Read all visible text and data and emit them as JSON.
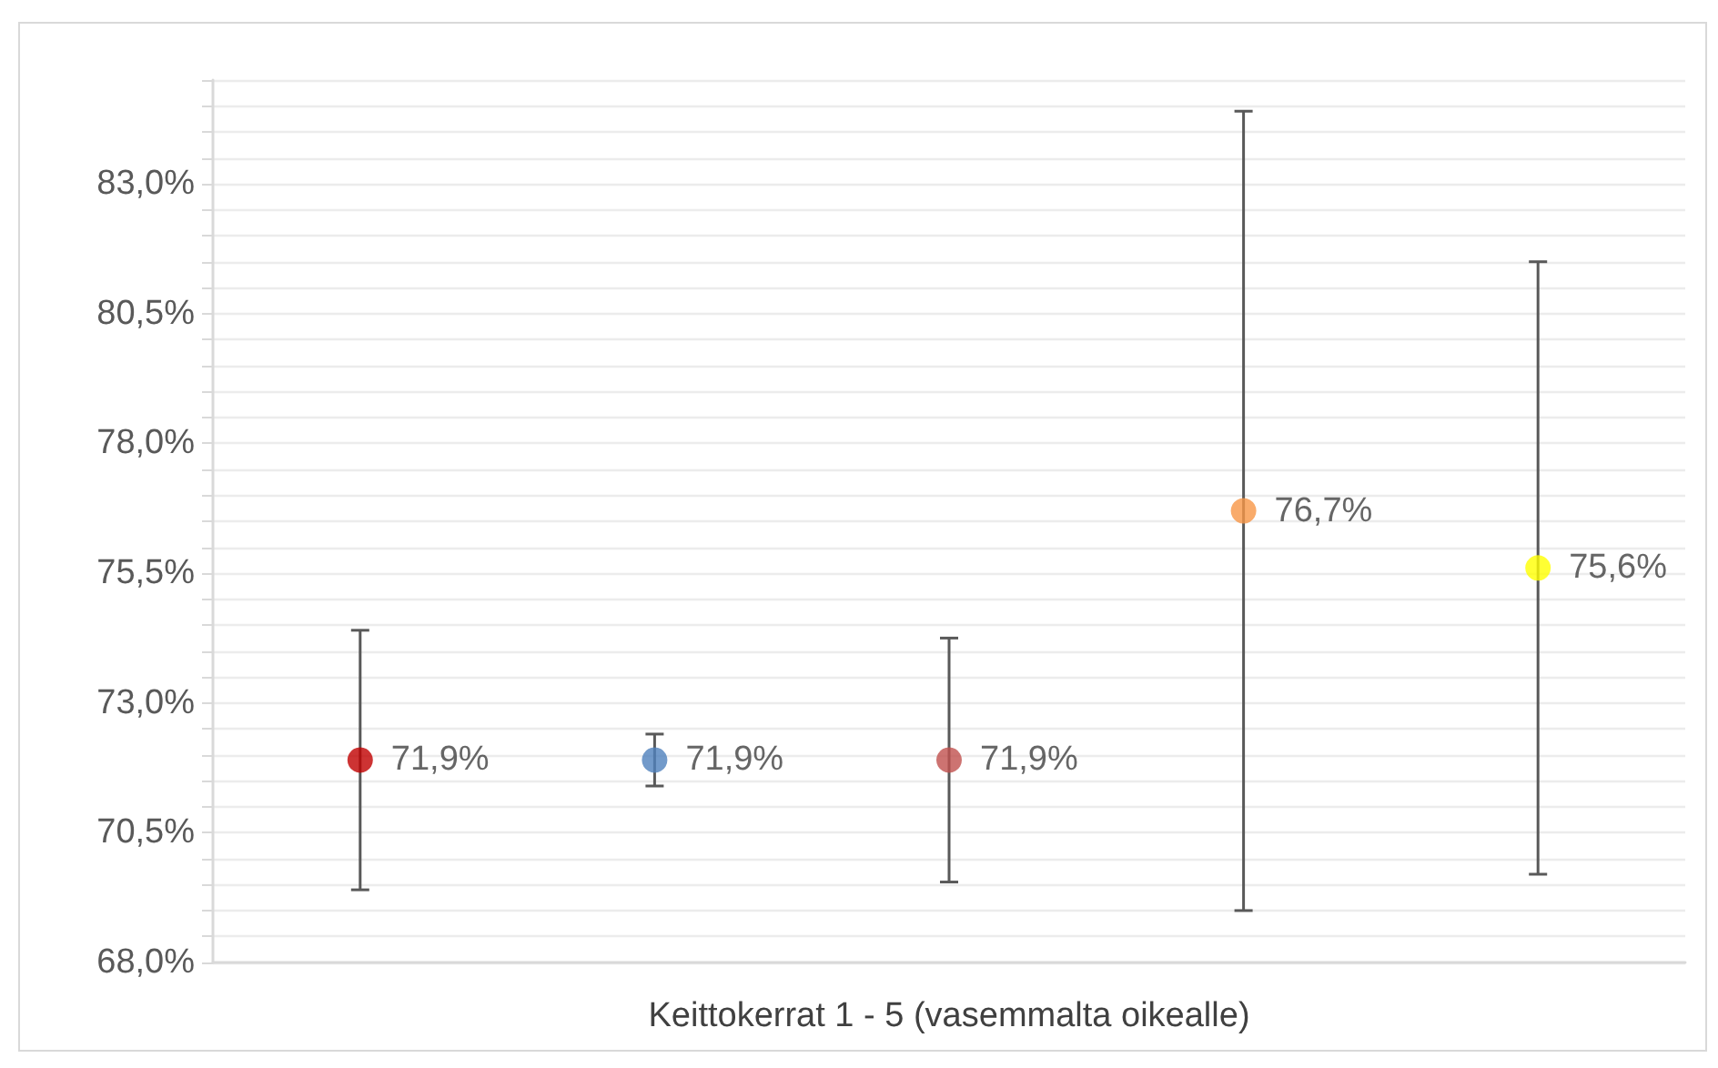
{
  "chart_data": {
    "type": "scatter",
    "xlabel": "Keittokerrat 1 - 5 (vasemmalta oikealle)",
    "categories": [
      null,
      null,
      null,
      null,
      null
    ],
    "series": [
      {
        "values": [
          71.9,
          71.9,
          71.9,
          76.7,
          75.6
        ],
        "colors": [
          "#c00000",
          "#4f81bd",
          "#c0504d",
          "#f79646",
          "#ffff00"
        ],
        "errors": [
          2.5,
          0.5,
          2.35,
          7.7,
          5.9
        ],
        "value_labels": [
          "71,9%",
          "71,9%",
          "71,9%",
          "76,7%",
          "75,6%"
        ]
      }
    ],
    "ylim": [
      68,
      85
    ],
    "yticks": [
      {
        "value": 68,
        "label": "68,0%"
      },
      {
        "value": 68.5,
        "label": null
      },
      {
        "value": 69,
        "label": null
      },
      {
        "value": 69.5,
        "label": null
      },
      {
        "value": 70,
        "label": null
      },
      {
        "value": 70.5,
        "label": "70,5%"
      },
      {
        "value": 71,
        "label": null
      },
      {
        "value": 71.5,
        "label": null
      },
      {
        "value": 72,
        "label": null
      },
      {
        "value": 72.5,
        "label": null
      },
      {
        "value": 73,
        "label": "73,0%"
      },
      {
        "value": 73.5,
        "label": null
      },
      {
        "value": 74,
        "label": null
      },
      {
        "value": 74.5,
        "label": null
      },
      {
        "value": 75,
        "label": null
      },
      {
        "value": 75.5,
        "label": "75,5%"
      },
      {
        "value": 76,
        "label": null
      },
      {
        "value": 76.5,
        "label": null
      },
      {
        "value": 77,
        "label": null
      },
      {
        "value": 77.5,
        "label": null
      },
      {
        "value": 78,
        "label": "78,0%"
      },
      {
        "value": 78.5,
        "label": null
      },
      {
        "value": 79,
        "label": null
      },
      {
        "value": 79.5,
        "label": null
      },
      {
        "value": 80,
        "label": null
      },
      {
        "value": 80.5,
        "label": "80,5%"
      },
      {
        "value": 81,
        "label": null
      },
      {
        "value": 81.5,
        "label": null
      },
      {
        "value": 82,
        "label": null
      },
      {
        "value": 82.5,
        "label": null
      },
      {
        "value": 83,
        "label": "83,0%"
      },
      {
        "value": 83.5,
        "label": null
      },
      {
        "value": 84,
        "label": null
      },
      {
        "value": 84.5,
        "label": null
      },
      {
        "value": 85,
        "label": null
      }
    ],
    "grid": "y",
    "legend": false,
    "marker": "circle",
    "line_style": "solid"
  }
}
